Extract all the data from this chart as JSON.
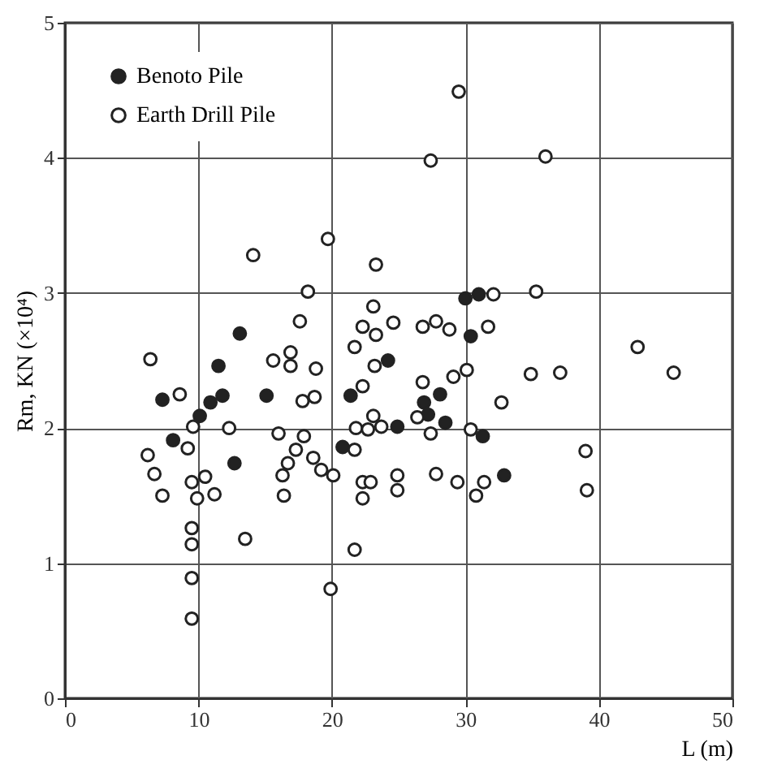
{
  "chart_data": {
    "type": "scatter",
    "xlabel": "L (m)",
    "ylabel": "Rm, KN (×10⁴)",
    "xlim": [
      0,
      50
    ],
    "ylim": [
      0,
      5
    ],
    "xticks": [
      0,
      10,
      20,
      30,
      40,
      50
    ],
    "yticks": [
      0,
      1,
      2,
      3,
      4,
      5
    ],
    "grid": true,
    "legend": "top left",
    "marker": "circle",
    "series": [
      {
        "name": "Benoto Pile",
        "color": "#222222",
        "x": [
          13.1,
          11.5,
          7.3,
          10.9,
          11.8,
          10.1,
          8.1,
          15.1,
          12.7,
          21.4,
          20.8,
          24.2,
          30.0,
          31.0,
          30.4,
          28.1,
          26.9,
          27.2,
          28.5,
          24.9,
          31.3,
          32.9
        ],
        "values": [
          2.7,
          2.46,
          2.21,
          2.19,
          2.24,
          2.09,
          1.91,
          2.24,
          1.74,
          2.24,
          1.86,
          2.5,
          2.96,
          2.99,
          2.68,
          2.25,
          2.19,
          2.1,
          2.04,
          2.01,
          1.94,
          1.65
        ]
      },
      {
        "name": "Earth Drill Pile",
        "color": "#ffffff",
        "x": [
          14.1,
          19.7,
          23.3,
          18.2,
          17.6,
          6.4,
          23.1,
          29.5,
          27.4,
          36.0,
          32.1,
          35.3,
          42.9,
          45.6,
          16.9,
          15.6,
          16.9,
          18.8,
          8.6,
          17.8,
          18.7,
          22.3,
          22.3,
          23.3,
          21.7,
          23.2,
          9.6,
          12.3,
          9.2,
          6.2,
          6.7,
          7.3,
          9.5,
          10.5,
          9.9,
          11.2,
          16.0,
          17.9,
          17.3,
          16.7,
          16.3,
          16.4,
          18.6,
          19.2,
          20.1,
          21.7,
          21.8,
          22.7,
          23.7,
          23.1,
          22.3,
          22.9,
          22.3,
          9.5,
          9.5,
          13.5,
          21.7,
          9.5,
          19.9,
          9.5,
          24.6,
          26.8,
          27.8,
          28.8,
          31.7,
          26.8,
          29.1,
          30.1,
          34.9,
          37.1,
          32.7,
          26.4,
          27.4,
          30.4,
          39.0,
          39.1,
          24.9,
          24.9,
          27.8,
          29.4,
          30.8,
          31.4
        ],
        "values": [
          3.28,
          3.4,
          3.21,
          3.01,
          2.79,
          2.51,
          2.9,
          4.49,
          3.98,
          4.01,
          2.99,
          3.01,
          2.6,
          2.41,
          2.56,
          2.5,
          2.46,
          2.44,
          2.25,
          2.2,
          2.23,
          2.31,
          2.75,
          2.69,
          2.6,
          2.46,
          2.01,
          2.0,
          1.85,
          1.8,
          1.66,
          1.5,
          1.6,
          1.64,
          1.48,
          1.51,
          1.96,
          1.94,
          1.84,
          1.74,
          1.65,
          1.5,
          1.78,
          1.69,
          1.65,
          1.84,
          2.0,
          1.99,
          2.01,
          2.09,
          1.6,
          1.6,
          1.48,
          1.26,
          1.14,
          1.18,
          1.1,
          0.89,
          0.81,
          0.59,
          2.78,
          2.75,
          2.79,
          2.73,
          2.75,
          2.34,
          2.38,
          2.43,
          2.4,
          2.41,
          2.19,
          2.08,
          1.96,
          1.99,
          1.83,
          1.54,
          1.65,
          1.54,
          1.66,
          1.6,
          1.5,
          1.6
        ]
      }
    ]
  }
}
